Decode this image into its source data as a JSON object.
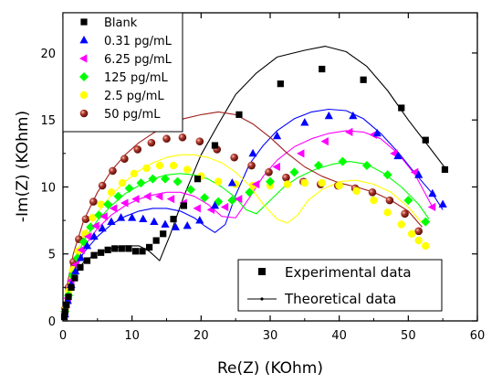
{
  "chart_data": {
    "type": "scatter",
    "xlabel": "Re(Z) (KOhm)",
    "ylabel": "-Im(Z) (KOhm)",
    "xlim": [
      0,
      60
    ],
    "ylim": [
      0,
      23
    ],
    "xticks": [
      0,
      10,
      20,
      30,
      40,
      50,
      60
    ],
    "yticks": [
      0,
      5,
      10,
      15,
      20
    ],
    "legend_position": "top-left",
    "series": [
      {
        "name": "Blank",
        "marker": "square",
        "color": "#000000",
        "x": [
          0.2,
          0.3,
          0.5,
          0.8,
          1.2,
          1.7,
          2.5,
          3.5,
          4.5,
          5.5,
          6.5,
          7.5,
          8.5,
          9.5,
          10.5,
          11.5,
          12.5,
          13.5,
          14.5,
          16.0,
          17.5,
          19.5,
          22.0,
          25.5,
          31.5,
          37.5,
          43.5,
          49.0,
          52.5,
          55.3
        ],
        "y": [
          0.3,
          0.7,
          1.2,
          1.8,
          2.5,
          3.2,
          4.0,
          4.5,
          4.9,
          5.1,
          5.3,
          5.4,
          5.4,
          5.4,
          5.2,
          5.2,
          5.5,
          6.0,
          6.5,
          7.6,
          8.6,
          10.6,
          13.1,
          15.4,
          17.7,
          18.8,
          18.0,
          15.9,
          13.5,
          11.3
        ]
      },
      {
        "name": "0.31 pg/mL",
        "marker": "triangle-up",
        "color": "#0000ff",
        "x": [
          0.3,
          0.7,
          1.2,
          1.8,
          2.6,
          3.5,
          4.5,
          5.7,
          7.0,
          8.4,
          10.0,
          11.6,
          13.2,
          14.8,
          16.3,
          18.0,
          19.8,
          22.0,
          24.5,
          27.5,
          31.0,
          35.0,
          38.5,
          42.0,
          45.5,
          48.5,
          51.5,
          53.5,
          55.0
        ],
        "y": [
          0.5,
          1.5,
          2.7,
          3.7,
          4.7,
          5.6,
          6.3,
          6.9,
          7.4,
          7.7,
          7.7,
          7.6,
          7.4,
          7.2,
          7.0,
          7.1,
          7.5,
          8.6,
          10.3,
          12.5,
          13.8,
          14.8,
          15.3,
          15.3,
          14.0,
          12.3,
          10.9,
          9.5,
          8.7
        ]
      },
      {
        "name": "6.25 pg/mL",
        "marker": "triangle-left",
        "color": "#ff00ff",
        "x": [
          0.3,
          0.7,
          1.2,
          1.9,
          2.7,
          3.7,
          4.8,
          6.0,
          7.4,
          9.0,
          10.6,
          12.3,
          14.0,
          15.7,
          17.5,
          19.5,
          21.5,
          23.5,
          25.5,
          28.0,
          31.0,
          34.5,
          38.0,
          41.5,
          45.0,
          48.0,
          51.0,
          53.5
        ],
        "y": [
          0.6,
          1.7,
          3.0,
          4.2,
          5.3,
          6.3,
          7.1,
          7.8,
          8.4,
          8.8,
          9.1,
          9.3,
          9.3,
          9.1,
          8.8,
          8.4,
          8.3,
          8.5,
          9.1,
          10.2,
          11.5,
          12.5,
          13.4,
          14.1,
          13.9,
          12.5,
          11.1,
          8.5
        ]
      },
      {
        "name": "125 pg/mL",
        "marker": "diamond",
        "color": "#00ff00",
        "x": [
          0.3,
          0.8,
          1.4,
          2.1,
          3.0,
          4.0,
          5.2,
          6.5,
          8.0,
          9.6,
          11.3,
          13.0,
          14.8,
          16.6,
          18.5,
          20.5,
          22.5,
          24.5,
          27.0,
          30.0,
          33.5,
          37.0,
          40.5,
          44.0,
          47.0,
          50.0,
          52.5
        ],
        "y": [
          0.7,
          1.9,
          3.4,
          4.7,
          5.9,
          7.0,
          7.9,
          8.7,
          9.3,
          9.9,
          10.3,
          10.6,
          10.6,
          10.4,
          9.8,
          9.2,
          8.9,
          9.0,
          9.6,
          10.4,
          11.1,
          11.6,
          11.9,
          11.6,
          10.9,
          9.0,
          7.4
        ]
      },
      {
        "name": "2.5 pg/mL",
        "marker": "circle",
        "color": "#ffff00",
        "x": [
          0.3,
          0.8,
          1.4,
          2.2,
          3.2,
          4.3,
          5.5,
          7.0,
          8.6,
          10.3,
          12.1,
          14.0,
          16.0,
          18.0,
          20.0,
          22.5,
          25.0,
          27.5,
          30.0,
          32.5,
          35.0,
          37.5,
          40.0,
          42.5,
          45.0,
          47.0,
          49.0,
          50.5,
          51.5,
          52.5
        ],
        "y": [
          0.8,
          2.2,
          3.8,
          5.2,
          6.5,
          7.7,
          8.7,
          9.6,
          10.3,
          11.0,
          11.4,
          11.6,
          11.6,
          11.3,
          10.8,
          10.4,
          10.2,
          10.1,
          10.1,
          10.2,
          10.3,
          10.3,
          10.1,
          9.7,
          9.0,
          8.1,
          7.2,
          6.5,
          6.0,
          5.6
        ]
      },
      {
        "name": "50 pg/mL",
        "marker": "sphere",
        "color": "#8b1a1a",
        "x": [
          0.3,
          0.8,
          1.5,
          2.3,
          3.3,
          4.4,
          5.7,
          7.2,
          8.9,
          10.8,
          12.8,
          15.0,
          17.3,
          19.8,
          22.3,
          24.8,
          27.3,
          29.8,
          32.3,
          34.8,
          37.3,
          39.8,
          42.3,
          44.8,
          47.3,
          49.5,
          51.5
        ],
        "y": [
          0.9,
          2.5,
          4.4,
          6.1,
          7.6,
          8.9,
          10.1,
          11.2,
          12.1,
          12.8,
          13.3,
          13.6,
          13.7,
          13.4,
          12.8,
          12.2,
          11.6,
          11.1,
          10.7,
          10.4,
          10.2,
          10.1,
          9.9,
          9.6,
          9.0,
          8.0,
          6.7
        ]
      }
    ],
    "fits": [
      {
        "series": "Blank",
        "color": "#000000",
        "x": [
          0,
          0.5,
          1.5,
          3,
          5,
          7,
          9,
          11,
          12.5,
          14,
          15.5,
          17.5,
          20,
          22.5,
          25,
          28,
          31,
          35,
          38,
          41,
          44,
          47,
          50,
          53,
          55.5
        ],
        "y": [
          0,
          1.6,
          3.2,
          4.4,
          5.1,
          5.4,
          5.6,
          5.6,
          5.2,
          4.5,
          6.4,
          9.3,
          12.4,
          14.7,
          16.9,
          18.5,
          19.7,
          20.2,
          20.5,
          20.1,
          19.0,
          17.2,
          15.0,
          13.0,
          11.3
        ]
      },
      {
        "series": "0.31 pg/mL",
        "color": "#0000ff",
        "x": [
          0,
          0.5,
          1.5,
          3,
          5,
          7,
          9,
          11,
          13,
          15,
          17,
          19,
          20.5,
          22,
          23.5,
          25,
          27,
          29,
          31,
          33.5,
          36,
          38.5,
          41,
          43.5,
          46,
          48.5,
          51,
          53.5,
          55
        ],
        "y": [
          0,
          1.7,
          3.6,
          5.1,
          6.3,
          7.2,
          7.8,
          8.2,
          8.4,
          8.4,
          8.2,
          7.7,
          7.1,
          6.6,
          7.2,
          9.4,
          11.7,
          13.1,
          14.2,
          15.1,
          15.6,
          15.8,
          15.7,
          15.1,
          14.0,
          12.6,
          11.0,
          9.5,
          8.3
        ]
      },
      {
        "series": "6.25 pg/mL",
        "color": "#ff00ff",
        "x": [
          0,
          0.5,
          1.5,
          3,
          5,
          7,
          9,
          11,
          13,
          15,
          17,
          19,
          21,
          23,
          25,
          27,
          29,
          31,
          33.5,
          36,
          38.5,
          41,
          43.5,
          46,
          48.5,
          51,
          53.5
        ],
        "y": [
          0,
          1.8,
          3.8,
          5.5,
          6.9,
          7.9,
          8.6,
          9.1,
          9.4,
          9.6,
          9.6,
          9.3,
          8.7,
          7.8,
          7.7,
          9.2,
          10.8,
          12.0,
          13.0,
          13.6,
          14.0,
          14.2,
          14.1,
          13.6,
          12.5,
          10.9,
          8.5
        ]
      },
      {
        "series": "125 pg/mL",
        "color": "#00ff00",
        "x": [
          0,
          0.5,
          1.5,
          3,
          5,
          7,
          9,
          11,
          13,
          15,
          17,
          19,
          21,
          23,
          25,
          26.5,
          28,
          30,
          32,
          34,
          36.5,
          39,
          41.5,
          44,
          46.5,
          49,
          51.5,
          53
        ],
        "y": [
          0,
          1.9,
          4.1,
          6.0,
          7.5,
          8.6,
          9.5,
          10.1,
          10.6,
          10.9,
          11.0,
          10.9,
          10.6,
          10.0,
          9.2,
          8.3,
          8.0,
          9.0,
          10.0,
          10.7,
          11.3,
          11.7,
          11.9,
          11.7,
          11.0,
          10.0,
          8.7,
          7.6
        ]
      },
      {
        "series": "2.5 pg/mL",
        "color": "#ffff00",
        "x": [
          0,
          0.5,
          1.5,
          3,
          5,
          7,
          9,
          11,
          13,
          15,
          17,
          19,
          21,
          23,
          25,
          27,
          29,
          31,
          32.5,
          34,
          35.5,
          37.5,
          40,
          42.5,
          45,
          47.5,
          50,
          52
        ],
        "y": [
          0,
          2.1,
          4.4,
          6.4,
          8.1,
          9.4,
          10.4,
          11.2,
          11.8,
          12.2,
          12.4,
          12.4,
          12.2,
          11.8,
          11.1,
          10.1,
          8.7,
          7.6,
          7.3,
          7.9,
          9.0,
          9.8,
          10.4,
          10.5,
          10.2,
          9.6,
          8.5,
          7.3
        ]
      },
      {
        "series": "50 pg/mL",
        "color": "#a0201c",
        "x": [
          0,
          0.5,
          1.5,
          3,
          5,
          7,
          9,
          11,
          13,
          15,
          17.5,
          20,
          22.5,
          25,
          27.5,
          30,
          32.5,
          35,
          37.5,
          40,
          42.5,
          45,
          47.5,
          50,
          52
        ],
        "y": [
          0,
          2.4,
          5.0,
          7.5,
          9.6,
          11.2,
          12.4,
          13.3,
          14.0,
          14.6,
          15.1,
          15.4,
          15.6,
          15.4,
          14.7,
          13.7,
          12.5,
          11.5,
          10.8,
          10.3,
          10.0,
          9.6,
          9.0,
          8.2,
          7.0
        ]
      }
    ],
    "legend2": {
      "entries": [
        {
          "label": "Experimental data",
          "kind": "marker"
        },
        {
          "label": "Theoretical data",
          "kind": "line"
        }
      ],
      "position": "bottom-right"
    }
  }
}
